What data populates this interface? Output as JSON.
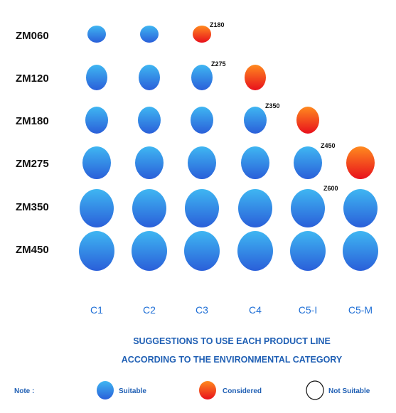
{
  "chart_data": {
    "type": "scatter",
    "rows": [
      "ZM060",
      "ZM120",
      "ZM180",
      "ZM275",
      "ZM350",
      "ZM450"
    ],
    "columns": [
      "C1",
      "C2",
      "C3",
      "C4",
      "C5-I",
      "C5-M"
    ],
    "status_by_row": [
      [
        "suitable",
        "suitable",
        "considered",
        "not_suitable",
        "not_suitable",
        "not_suitable"
      ],
      [
        "suitable",
        "suitable",
        "suitable",
        "considered",
        "not_suitable",
        "not_suitable"
      ],
      [
        "suitable",
        "suitable",
        "suitable",
        "suitable",
        "considered",
        "not_suitable"
      ],
      [
        "suitable",
        "suitable",
        "suitable",
        "suitable",
        "suitable",
        "considered"
      ],
      [
        "suitable",
        "suitable",
        "suitable",
        "suitable",
        "suitable",
        "suitable"
      ],
      [
        "suitable",
        "suitable",
        "suitable",
        "suitable",
        "suitable",
        "suitable"
      ]
    ],
    "annotations": [
      {
        "row": "ZM060",
        "column": "C3",
        "text": "Z180"
      },
      {
        "row": "ZM120",
        "column": "C3",
        "text": "Z275"
      },
      {
        "row": "ZM180",
        "column": "C4",
        "text": "Z350"
      },
      {
        "row": "ZM275",
        "column": "C5-I",
        "text": "Z450"
      },
      {
        "row": "ZM350",
        "column": "C5-I",
        "text": "Z600"
      }
    ],
    "title_lines": [
      "SUGGESTIONS TO USE EACH PRODUCT LINE",
      "ACCORDING TO THE ENVIRONMENTAL CATEGORY"
    ],
    "legend": {
      "note": "Note :",
      "items": [
        {
          "key": "suitable",
          "label": "Suitable"
        },
        {
          "key": "considered",
          "label": "Considered"
        },
        {
          "key": "not_suitable",
          "label": "Not Suitable"
        }
      ]
    },
    "colors": {
      "suitable_light": "#3fb6f2",
      "suitable_dark": "#2a5fd9",
      "considered_light": "#ff8a1f",
      "considered_dark": "#e8101c",
      "label_blue": "#1f6fd6"
    }
  }
}
